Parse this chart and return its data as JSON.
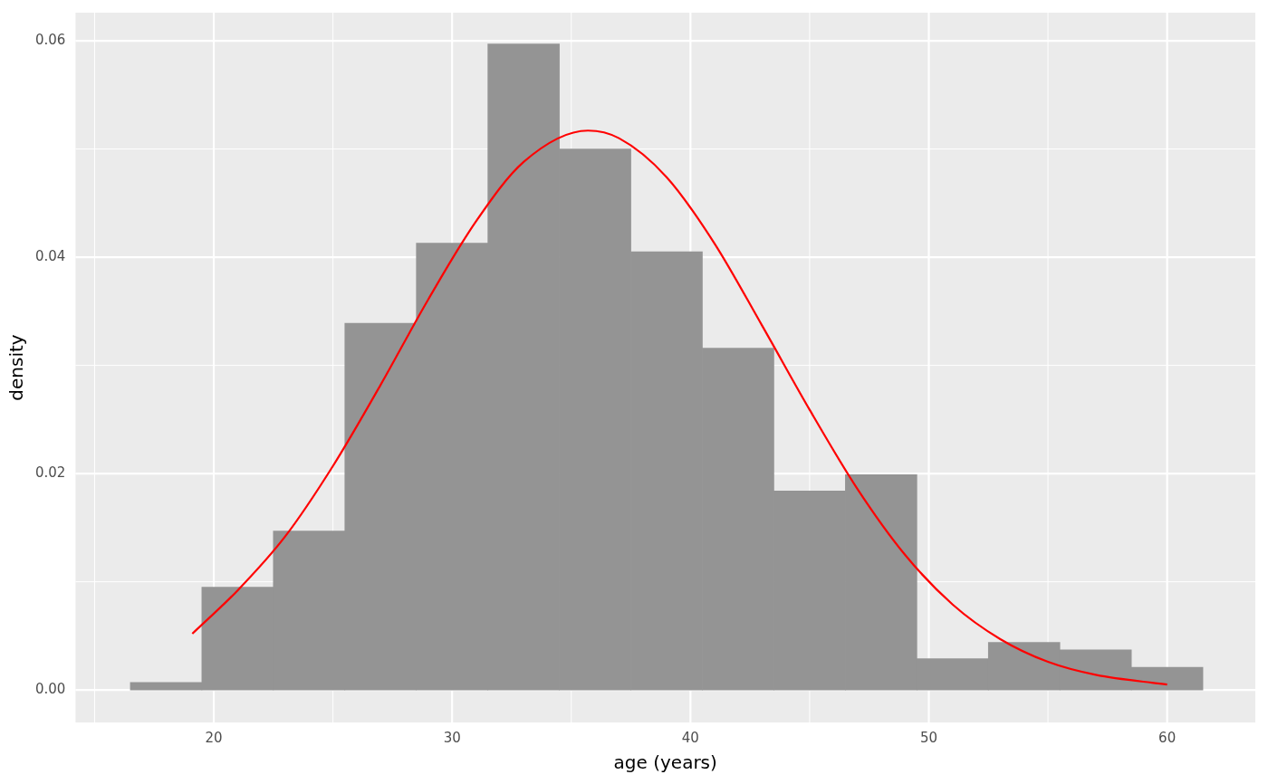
{
  "chart_data": {
    "type": "histogram",
    "xlabel": "age (years)",
    "ylabel": "density",
    "bins": [
      16.5,
      19.5,
      22.5,
      25.5,
      28.5,
      31.5,
      34.5,
      37.5,
      40.5,
      43.5,
      46.5,
      49.5,
      52.5,
      55.5,
      58.5,
      61.5
    ],
    "values": [
      0.0007,
      0.0095,
      0.0147,
      0.0339,
      0.0413,
      0.0597,
      0.05,
      0.0405,
      0.0316,
      0.0184,
      0.0199,
      0.0029,
      0.0044,
      0.0037,
      0.0021
    ],
    "color": "#949494",
    "series": [
      {
        "type": "line",
        "color": "#ff0000",
        "x": [
          19.1,
          21,
          23,
          25,
          27,
          29,
          31,
          33,
          35.7,
          37,
          39,
          41,
          43,
          45,
          47,
          49,
          51,
          53,
          55,
          57,
          60
        ],
        "values": [
          0.0052,
          0.0092,
          0.0142,
          0.0207,
          0.0282,
          0.0361,
          0.0433,
          0.0488,
          0.0517,
          0.051,
          0.0474,
          0.0413,
          0.0337,
          0.0259,
          0.0186,
          0.0125,
          0.0079,
          0.0047,
          0.0026,
          0.0014,
          0.0005
        ]
      }
    ],
    "xlim": [
      14.2,
      63.7
    ],
    "xticks": [
      20,
      30,
      40,
      50,
      60
    ],
    "ylim": [
      -0.003,
      0.0626
    ],
    "yticks": [
      {
        "value": 0,
        "label": "0.00"
      },
      {
        "value": 0.02,
        "label": "0.02"
      },
      {
        "value": 0.04,
        "label": "0.04"
      },
      {
        "value": 0.06,
        "label": "0.06"
      }
    ],
    "grid": true
  }
}
